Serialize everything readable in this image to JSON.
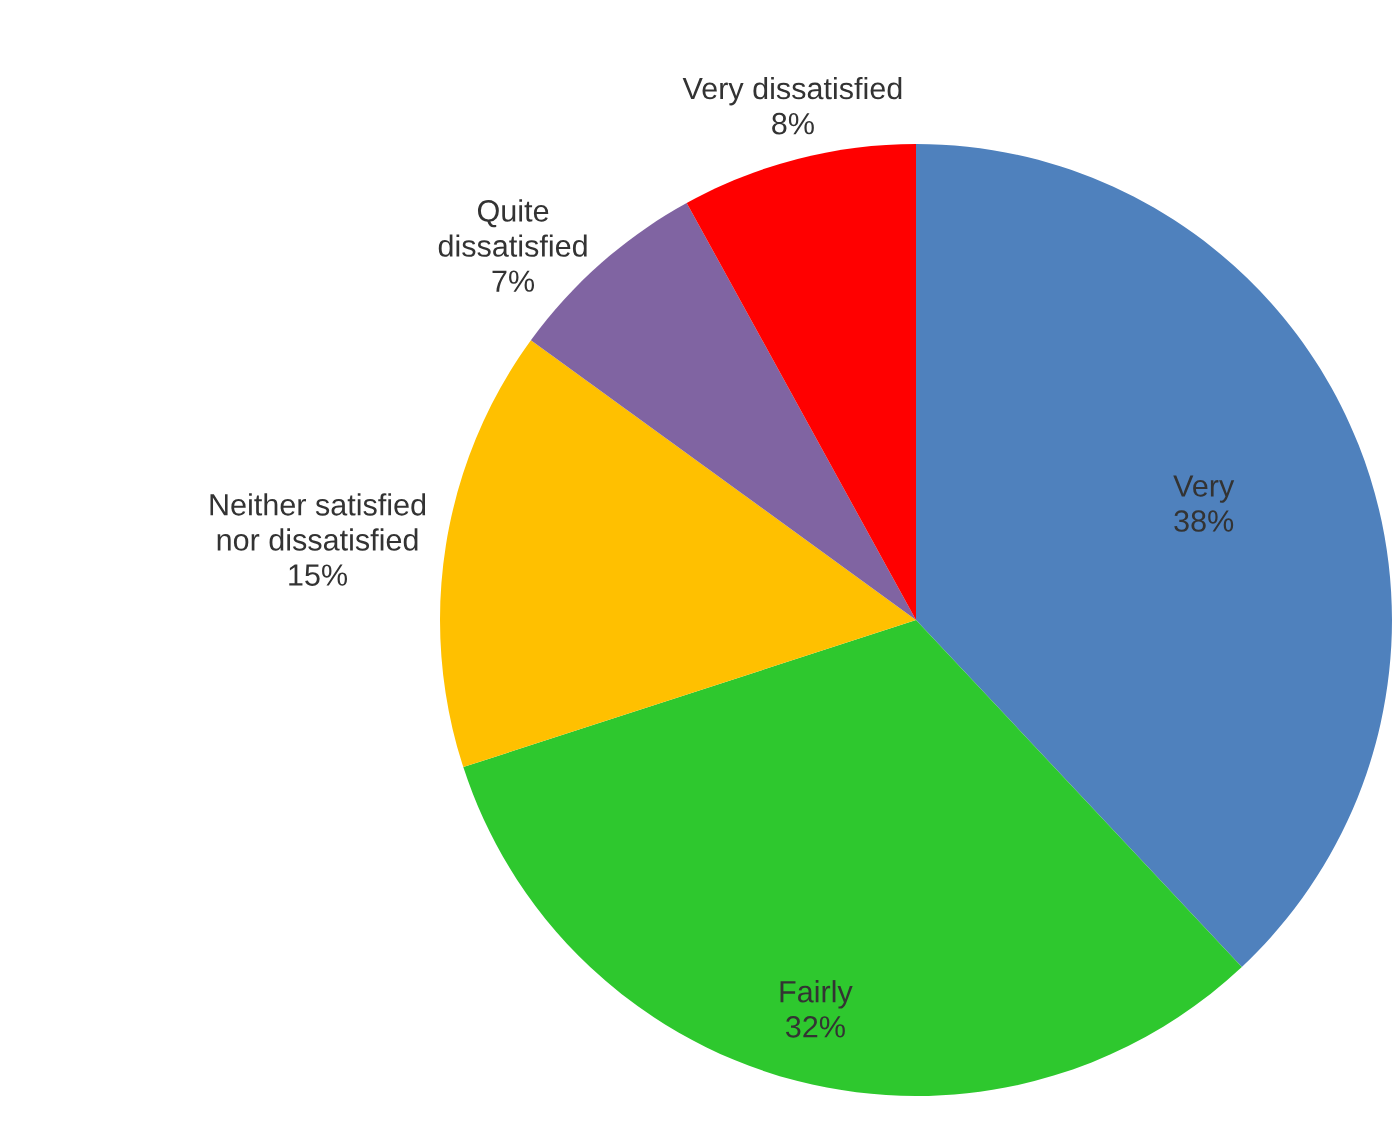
{
  "chart_data": {
    "type": "pie",
    "categories": [
      "Very",
      "Fairly",
      "Neither satisfied\nnor dissatisfied",
      "Quite\ndissatisfied",
      "Very dissatisfied"
    ],
    "values": [
      38,
      32,
      15,
      7,
      8
    ],
    "value_labels": [
      "38%",
      "32%",
      "15%",
      "7%",
      "8%"
    ],
    "colors": [
      "#4f81bd",
      "#2ec82e",
      "#ffc000",
      "#8064a2",
      "#ff0000"
    ]
  }
}
